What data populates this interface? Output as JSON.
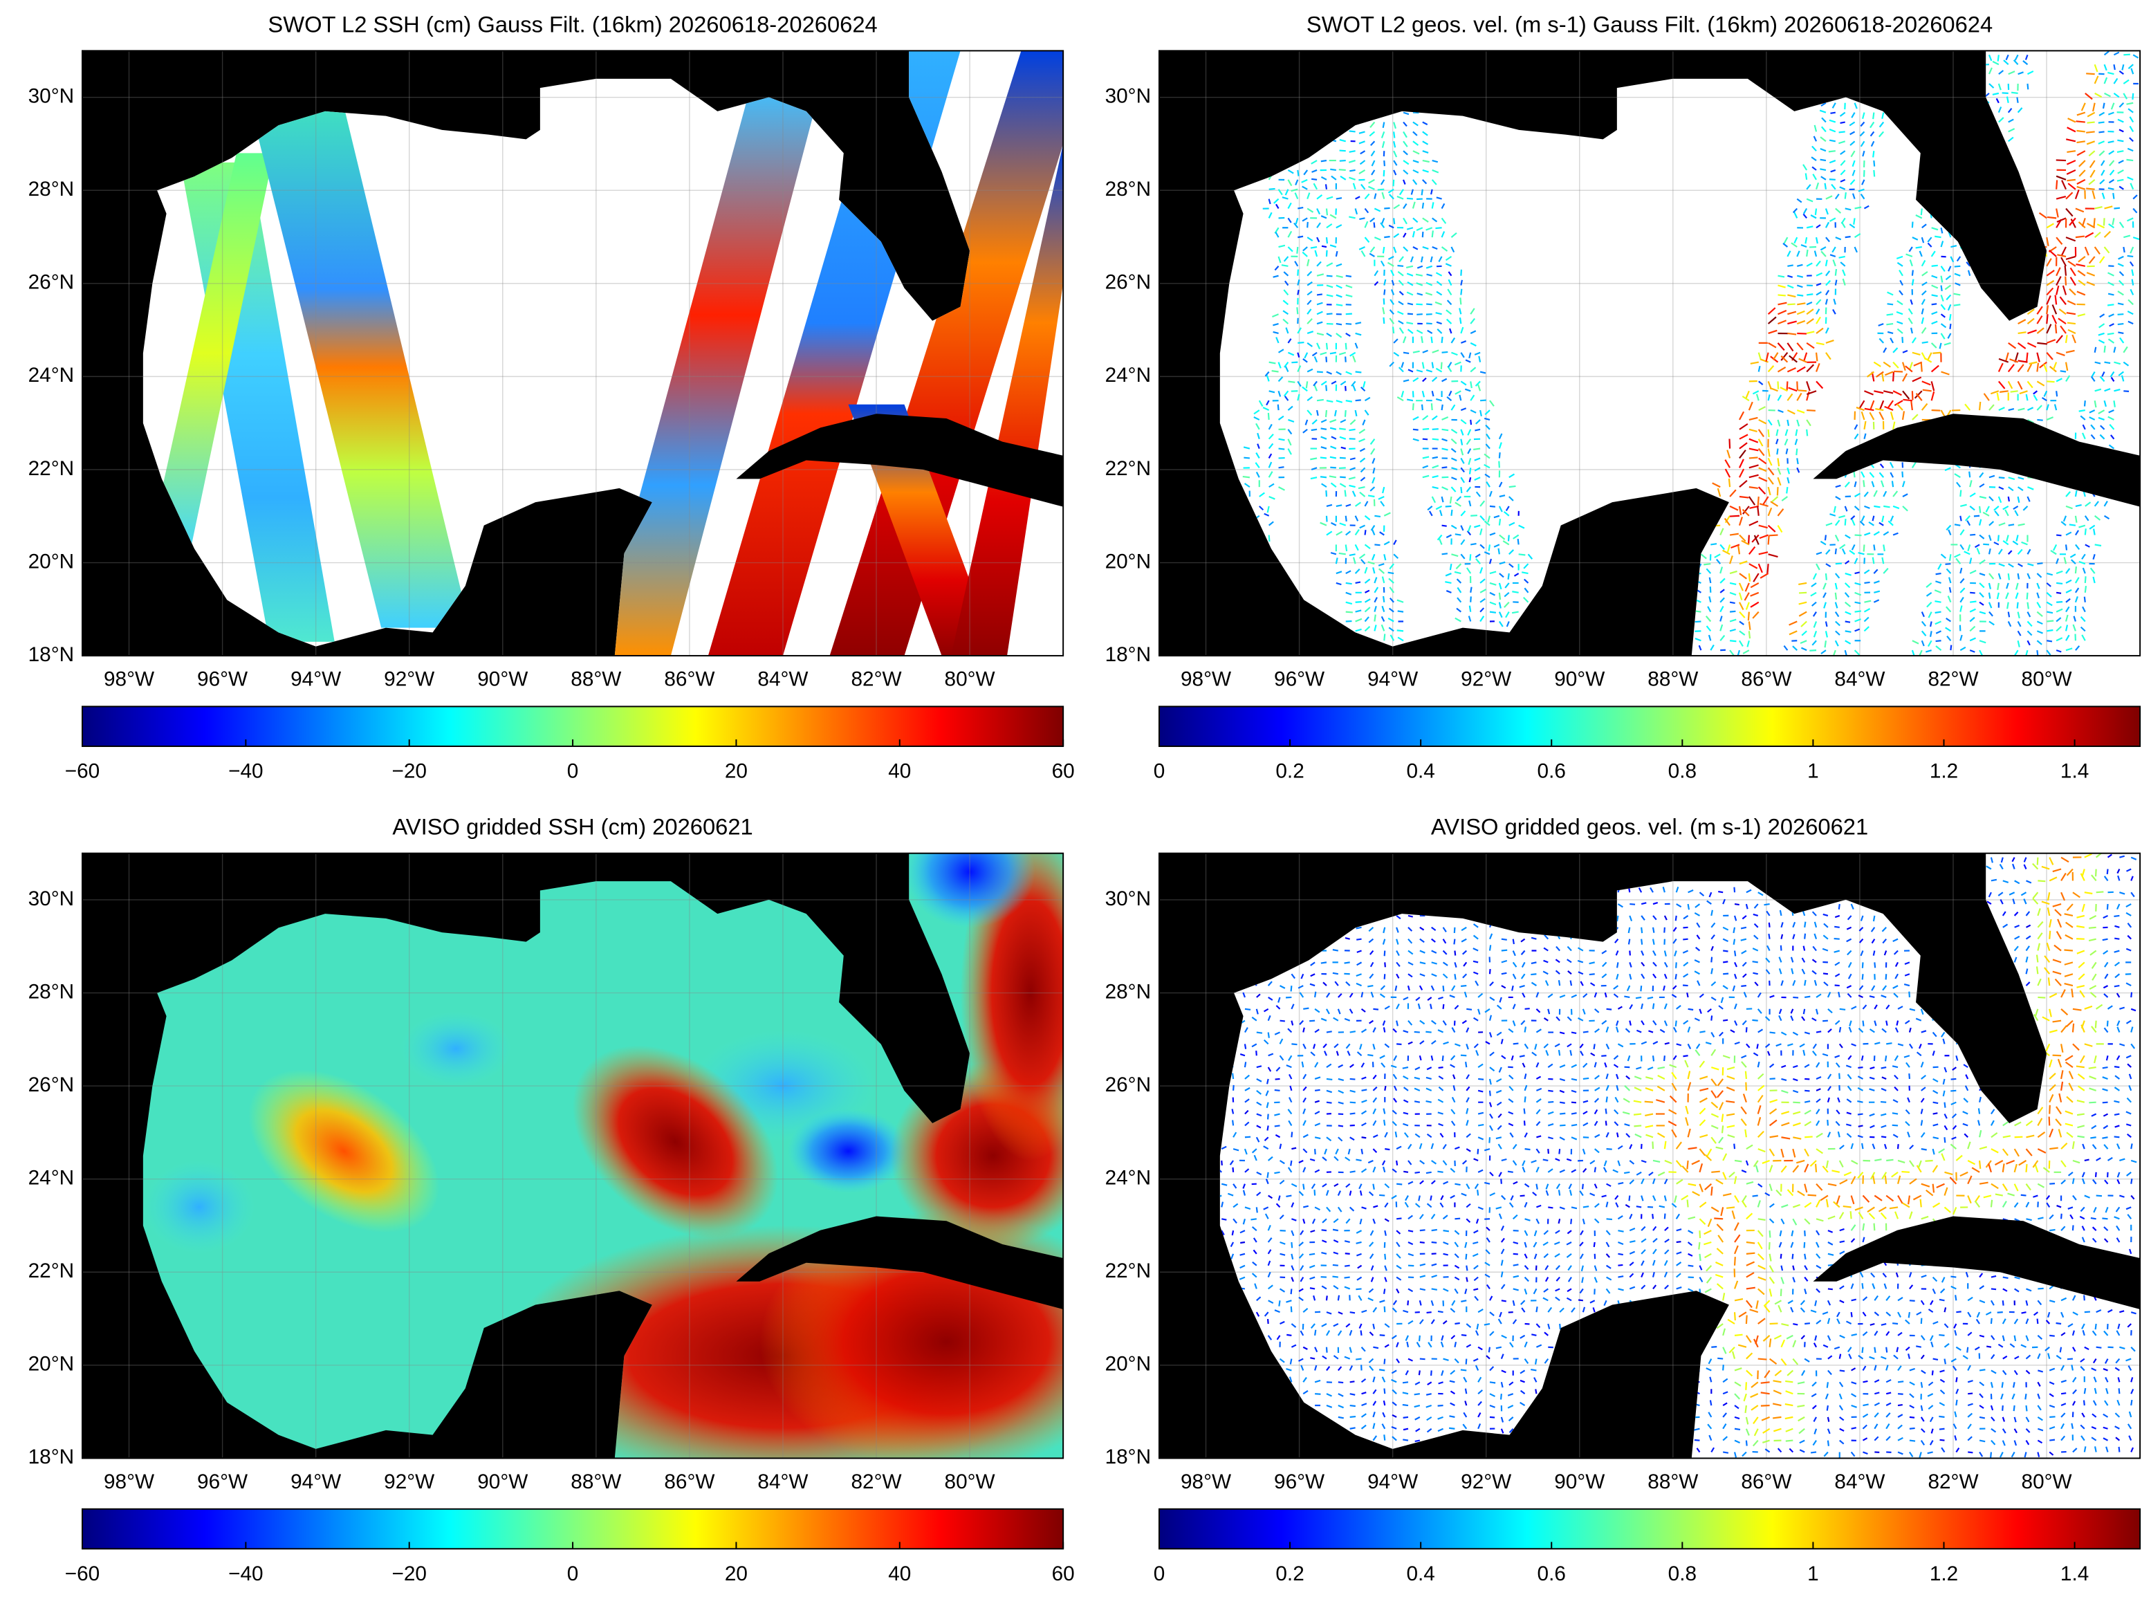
{
  "panels": [
    {
      "title": "SWOT L2 SSH (cm) Gauss Filt. (16km) 20260618-20260624",
      "kind": "ssh",
      "field": "swath",
      "xlim": [
        -99,
        -78
      ],
      "ylim": [
        18,
        31
      ],
      "xticks": [
        {
          "value": -98,
          "label": "98°W"
        },
        {
          "value": -96,
          "label": "96°W"
        },
        {
          "value": -94,
          "label": "94°W"
        },
        {
          "value": -92,
          "label": "92°W"
        },
        {
          "value": -90,
          "label": "90°W"
        },
        {
          "value": -88,
          "label": "88°W"
        },
        {
          "value": -86,
          "label": "86°W"
        },
        {
          "value": -84,
          "label": "84°W"
        },
        {
          "value": -82,
          "label": "82°W"
        },
        {
          "value": -80,
          "label": "80°W"
        }
      ],
      "yticks": [
        {
          "value": 18,
          "label": "18°N"
        },
        {
          "value": 20,
          "label": "20°N"
        },
        {
          "value": 22,
          "label": "22°N"
        },
        {
          "value": 24,
          "label": "24°N"
        },
        {
          "value": 26,
          "label": "26°N"
        },
        {
          "value": 28,
          "label": "28°N"
        },
        {
          "value": 30,
          "label": "30°N"
        }
      ],
      "colorbar": {
        "lim": [
          -60,
          60
        ],
        "ticks": [
          {
            "value": -60,
            "label": "−60"
          },
          {
            "value": -40,
            "label": "−40"
          },
          {
            "value": -20,
            "label": "−20"
          },
          0,
          20,
          40,
          60
        ]
      }
    },
    {
      "title": "SWOT L2 geos. vel. (m s-1) Gauss Filt. (16km) 20260618-20260624",
      "kind": "vel",
      "field": "swath",
      "xlim": [
        -99,
        -78
      ],
      "ylim": [
        18,
        31
      ],
      "xticks": [
        {
          "value": -98,
          "label": "98°W"
        },
        {
          "value": -96,
          "label": "96°W"
        },
        {
          "value": -94,
          "label": "94°W"
        },
        {
          "value": -92,
          "label": "92°W"
        },
        {
          "value": -90,
          "label": "90°W"
        },
        {
          "value": -88,
          "label": "88°W"
        },
        {
          "value": -86,
          "label": "86°W"
        },
        {
          "value": -84,
          "label": "84°W"
        },
        {
          "value": -82,
          "label": "82°W"
        },
        {
          "value": -80,
          "label": "80°W"
        }
      ],
      "yticks": [
        {
          "value": 18,
          "label": "18°N"
        },
        {
          "value": 20,
          "label": "20°N"
        },
        {
          "value": 22,
          "label": "22°N"
        },
        {
          "value": 24,
          "label": "24°N"
        },
        {
          "value": 26,
          "label": "26°N"
        },
        {
          "value": 28,
          "label": "28°N"
        },
        {
          "value": 30,
          "label": "30°N"
        }
      ],
      "colorbar": {
        "lim": [
          0,
          1.5
        ],
        "ticks": [
          0,
          0.2,
          0.4,
          0.6,
          0.8,
          1,
          1.2,
          1.4
        ]
      }
    },
    {
      "title": "AVISO gridded SSH (cm) 20260621",
      "kind": "ssh",
      "field": "gridded",
      "xlim": [
        -99,
        -78
      ],
      "ylim": [
        18,
        31
      ],
      "xticks": [
        {
          "value": -98,
          "label": "98°W"
        },
        {
          "value": -96,
          "label": "96°W"
        },
        {
          "value": -94,
          "label": "94°W"
        },
        {
          "value": -92,
          "label": "92°W"
        },
        {
          "value": -90,
          "label": "90°W"
        },
        {
          "value": -88,
          "label": "88°W"
        },
        {
          "value": -86,
          "label": "86°W"
        },
        {
          "value": -84,
          "label": "84°W"
        },
        {
          "value": -82,
          "label": "82°W"
        },
        {
          "value": -80,
          "label": "80°W"
        }
      ],
      "yticks": [
        {
          "value": 18,
          "label": "18°N"
        },
        {
          "value": 20,
          "label": "20°N"
        },
        {
          "value": 22,
          "label": "22°N"
        },
        {
          "value": 24,
          "label": "24°N"
        },
        {
          "value": 26,
          "label": "26°N"
        },
        {
          "value": 28,
          "label": "28°N"
        },
        {
          "value": 30,
          "label": "30°N"
        }
      ],
      "colorbar": {
        "lim": [
          -60,
          60
        ],
        "ticks": [
          {
            "value": -60,
            "label": "−60"
          },
          {
            "value": -40,
            "label": "−40"
          },
          {
            "value": -20,
            "label": "−20"
          },
          0,
          20,
          40,
          60
        ]
      }
    },
    {
      "title": "AVISO gridded geos. vel. (m s-1)  20260621",
      "kind": "vel",
      "field": "gridded",
      "xlim": [
        -99,
        -78
      ],
      "ylim": [
        18,
        31
      ],
      "xticks": [
        {
          "value": -98,
          "label": "98°W"
        },
        {
          "value": -96,
          "label": "96°W"
        },
        {
          "value": -94,
          "label": "94°W"
        },
        {
          "value": -92,
          "label": "92°W"
        },
        {
          "value": -90,
          "label": "90°W"
        },
        {
          "value": -88,
          "label": "88°W"
        },
        {
          "value": -86,
          "label": "86°W"
        },
        {
          "value": -84,
          "label": "84°W"
        },
        {
          "value": -82,
          "label": "82°W"
        },
        {
          "value": -80,
          "label": "80°W"
        }
      ],
      "yticks": [
        {
          "value": 18,
          "label": "18°N"
        },
        {
          "value": 20,
          "label": "20°N"
        },
        {
          "value": 22,
          "label": "22°N"
        },
        {
          "value": 24,
          "label": "24°N"
        },
        {
          "value": 26,
          "label": "26°N"
        },
        {
          "value": 28,
          "label": "28°N"
        },
        {
          "value": 30,
          "label": "30°N"
        }
      ],
      "colorbar": {
        "lim": [
          0,
          1.5
        ],
        "ticks": [
          0,
          0.2,
          0.4,
          0.6,
          0.8,
          1,
          1.2,
          1.4
        ]
      }
    }
  ]
}
